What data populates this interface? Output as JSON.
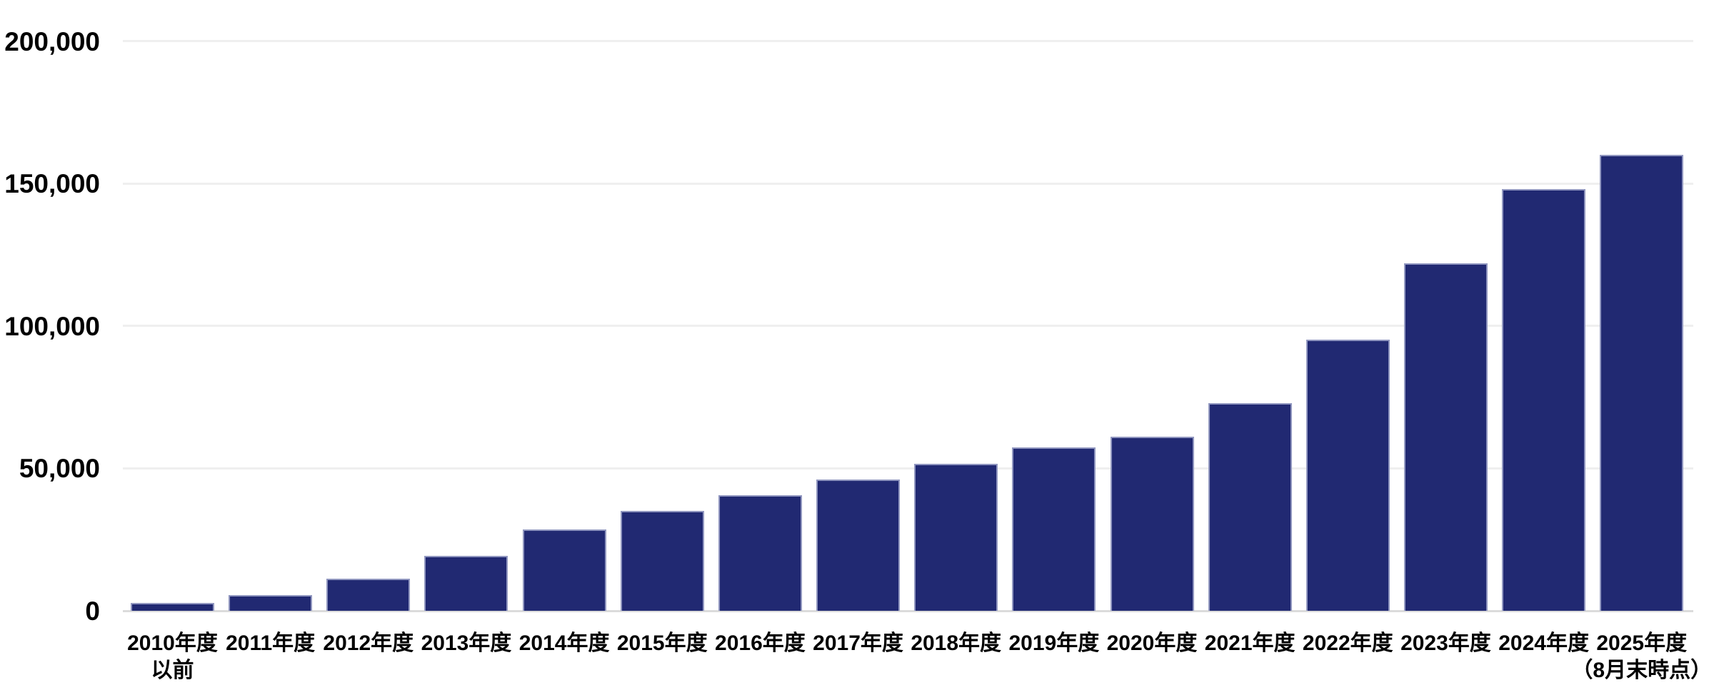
{
  "chart_data": {
    "type": "bar",
    "title": "",
    "xlabel": "",
    "ylabel": "",
    "categories": [
      "2010年度\n以前",
      "2011年度",
      "2012年度",
      "2013年度",
      "2014年度",
      "2015年度",
      "2016年度",
      "2017年度",
      "2018年度",
      "2019年度",
      "2020年度",
      "2021年度",
      "2022年度",
      "2023年度",
      "2024年度",
      "2025年度\n（8月末時点）"
    ],
    "values": [
      2800,
      5500,
      11300,
      19300,
      28600,
      35100,
      40700,
      46100,
      51700,
      57400,
      61200,
      73000,
      95100,
      122100,
      148000,
      160000
    ],
    "ylim": [
      0,
      200000
    ],
    "y_tick_interval": 50000,
    "y_tick_labels": [
      "0",
      "50,000",
      "100,000",
      "150,000",
      "200,000"
    ],
    "grid": true,
    "legend": "none",
    "bar_color": "#212972",
    "bar_edge_color": "#a4aace",
    "gridline_color": "#efefef",
    "axis_text_color": "#000000",
    "background_color": "#ffffff"
  }
}
